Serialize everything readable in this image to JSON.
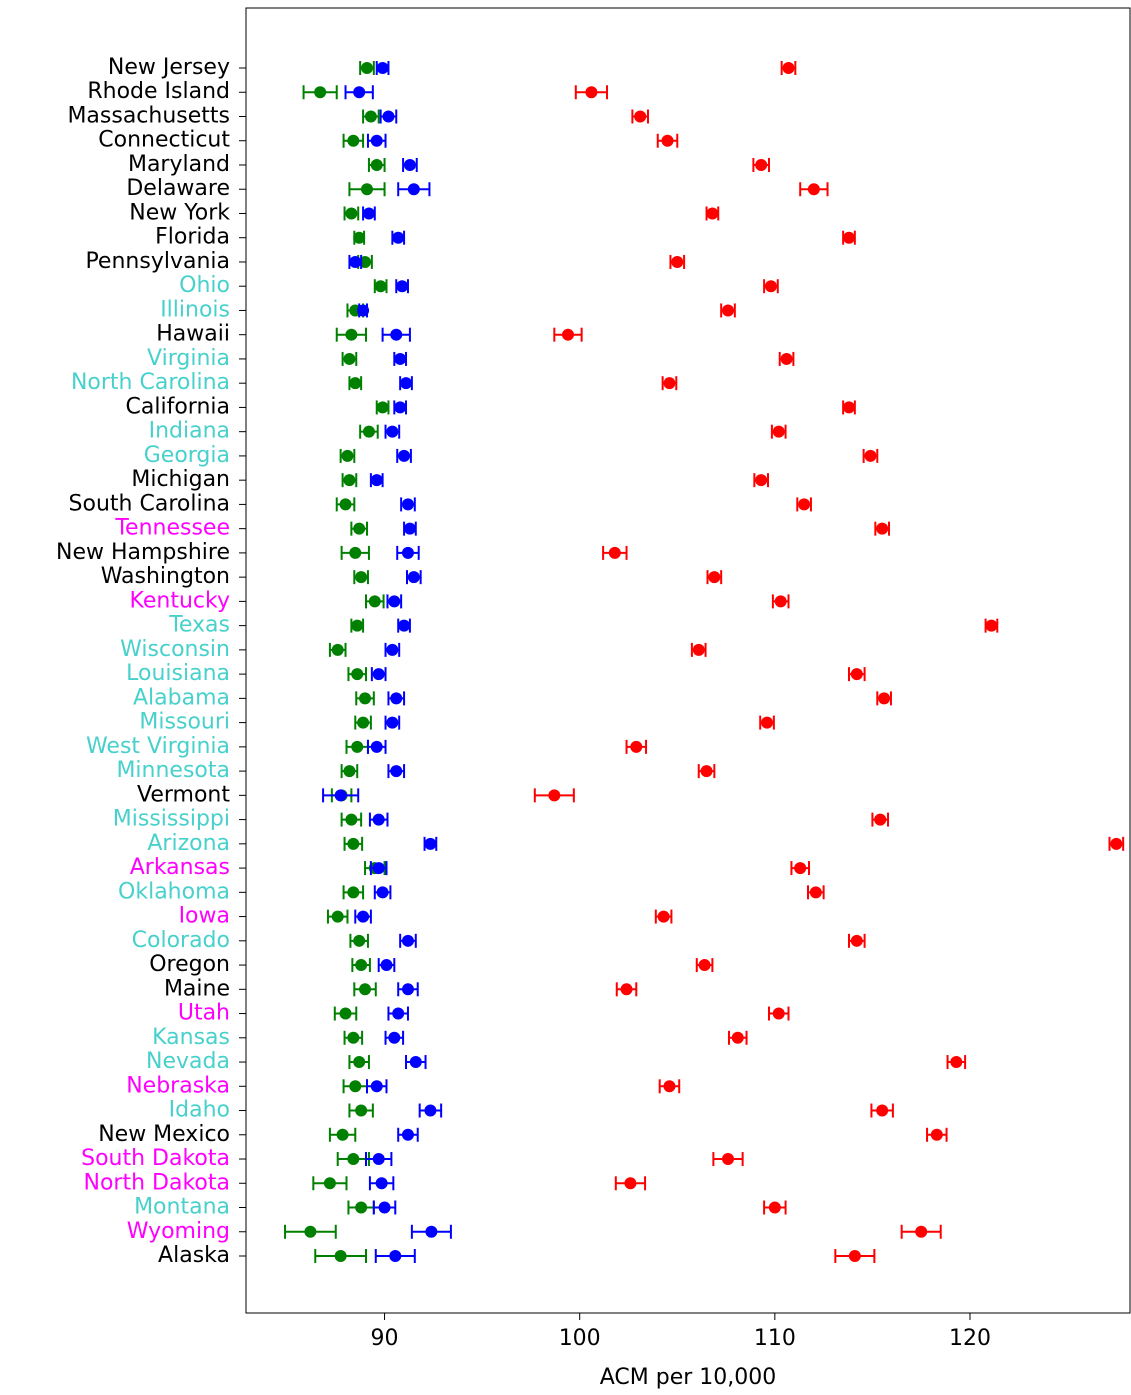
{
  "chart_data": {
    "type": "errorbar-dot",
    "x_label": "ACM per 10,000",
    "categories": [
      "New Jersey",
      "Rhode Island",
      "Massachusetts",
      "Connecticut",
      "Maryland",
      "Delaware",
      "New York",
      "Florida",
      "Pennsylvania",
      "Ohio",
      "Illinois",
      "Hawaii",
      "Virginia",
      "North Carolina",
      "California",
      "Indiana",
      "Georgia",
      "Michigan",
      "South Carolina",
      "Tennessee",
      "New Hampshire",
      "Washington",
      "Kentucky",
      "Texas",
      "Wisconsin",
      "Louisiana",
      "Alabama",
      "Missouri",
      "West Virginia",
      "Minnesota",
      "Vermont",
      "Mississippi",
      "Arizona",
      "Arkansas",
      "Oklahoma",
      "Iowa",
      "Colorado",
      "Oregon",
      "Maine",
      "Utah",
      "Kansas",
      "Nevada",
      "Nebraska",
      "Idaho",
      "New Mexico",
      "South Dakota",
      "North Dakota",
      "Montana",
      "Wyoming",
      "Alaska"
    ],
    "label_colors": [
      "#000000",
      "#000000",
      "#000000",
      "#000000",
      "#000000",
      "#000000",
      "#000000",
      "#000000",
      "#000000",
      "#48d1cc",
      "#48d1cc",
      "#000000",
      "#48d1cc",
      "#48d1cc",
      "#000000",
      "#48d1cc",
      "#48d1cc",
      "#000000",
      "#000000",
      "#ff00ff",
      "#000000",
      "#000000",
      "#ff00ff",
      "#48d1cc",
      "#48d1cc",
      "#48d1cc",
      "#48d1cc",
      "#48d1cc",
      "#48d1cc",
      "#48d1cc",
      "#000000",
      "#48d1cc",
      "#48d1cc",
      "#ff00ff",
      "#48d1cc",
      "#ff00ff",
      "#48d1cc",
      "#000000",
      "#000000",
      "#ff00ff",
      "#48d1cc",
      "#48d1cc",
      "#ff00ff",
      "#48d1cc",
      "#000000",
      "#ff00ff",
      "#ff00ff",
      "#48d1cc",
      "#ff00ff",
      "#000000"
    ],
    "series": [
      {
        "color": "#008000",
        "values": [
          89.1,
          86.7,
          89.3,
          88.4,
          89.6,
          89.1,
          88.3,
          88.7,
          89.0,
          89.8,
          88.5,
          88.3,
          88.2,
          88.5,
          89.9,
          89.2,
          88.1,
          88.2,
          88.0,
          88.7,
          88.5,
          88.8,
          89.5,
          88.6,
          87.6,
          88.6,
          89.0,
          88.9,
          88.6,
          88.2,
          87.8,
          88.3,
          88.4,
          89.5,
          88.4,
          87.6,
          88.7,
          88.8,
          89.0,
          88.0,
          88.4,
          88.7,
          88.5,
          88.8,
          87.85,
          88.4,
          87.2,
          88.8,
          86.2,
          87.75
        ],
        "errors": [
          0.35,
          0.85,
          0.4,
          0.5,
          0.4,
          0.9,
          0.35,
          0.25,
          0.35,
          0.3,
          0.4,
          0.75,
          0.35,
          0.3,
          0.3,
          0.45,
          0.35,
          0.35,
          0.45,
          0.4,
          0.7,
          0.35,
          0.45,
          0.3,
          0.4,
          0.45,
          0.45,
          0.4,
          0.55,
          0.4,
          0.5,
          0.5,
          0.45,
          0.5,
          0.5,
          0.5,
          0.45,
          0.45,
          0.55,
          0.55,
          0.45,
          0.5,
          0.6,
          0.6,
          0.65,
          0.8,
          0.85,
          0.65,
          1.3,
          1.3
        ]
      },
      {
        "color": "#0000ff",
        "values": [
          89.9,
          88.7,
          90.2,
          89.6,
          91.3,
          91.5,
          89.2,
          90.7,
          88.5,
          90.9,
          88.9,
          90.6,
          90.8,
          91.1,
          90.8,
          90.4,
          91.0,
          89.6,
          91.2,
          91.3,
          91.2,
          91.5,
          90.5,
          91.0,
          90.4,
          89.7,
          90.6,
          90.4,
          89.6,
          90.6,
          87.75,
          89.7,
          92.35,
          89.7,
          89.9,
          88.9,
          91.2,
          90.1,
          91.2,
          90.7,
          90.5,
          91.6,
          89.6,
          92.35,
          91.2,
          89.7,
          89.85,
          90.0,
          92.4,
          90.55
        ],
        "errors": [
          0.3,
          0.7,
          0.4,
          0.45,
          0.35,
          0.8,
          0.3,
          0.3,
          0.3,
          0.3,
          0.2,
          0.7,
          0.3,
          0.3,
          0.3,
          0.35,
          0.35,
          0.3,
          0.35,
          0.3,
          0.55,
          0.35,
          0.35,
          0.3,
          0.35,
          0.35,
          0.4,
          0.35,
          0.45,
          0.4,
          0.9,
          0.45,
          0.3,
          0.4,
          0.4,
          0.4,
          0.4,
          0.4,
          0.5,
          0.5,
          0.45,
          0.5,
          0.5,
          0.55,
          0.5,
          0.65,
          0.6,
          0.55,
          1.0,
          1.0
        ]
      },
      {
        "color": "#ff0000",
        "values": [
          110.7,
          100.6,
          103.1,
          104.5,
          109.3,
          112.0,
          106.8,
          113.8,
          105.0,
          109.8,
          107.6,
          99.4,
          110.6,
          104.6,
          113.8,
          110.2,
          114.9,
          109.3,
          111.5,
          115.5,
          101.8,
          106.9,
          110.3,
          121.1,
          106.1,
          114.2,
          115.6,
          109.6,
          102.9,
          106.5,
          98.7,
          115.4,
          127.5,
          111.3,
          112.1,
          104.3,
          114.2,
          106.4,
          102.4,
          110.2,
          108.1,
          119.3,
          104.6,
          115.5,
          118.3,
          107.6,
          102.6,
          110.0,
          117.5,
          114.1
        ],
        "errors": [
          0.35,
          0.8,
          0.4,
          0.5,
          0.4,
          0.7,
          0.3,
          0.3,
          0.35,
          0.35,
          0.35,
          0.7,
          0.35,
          0.35,
          0.3,
          0.35,
          0.35,
          0.35,
          0.35,
          0.35,
          0.6,
          0.35,
          0.4,
          0.3,
          0.35,
          0.4,
          0.35,
          0.35,
          0.5,
          0.4,
          1.0,
          0.4,
          0.35,
          0.45,
          0.4,
          0.4,
          0.4,
          0.4,
          0.5,
          0.5,
          0.45,
          0.45,
          0.5,
          0.55,
          0.5,
          0.75,
          0.75,
          0.55,
          1.0,
          1.0
        ]
      }
    ],
    "xlim": [
      82.9,
      128.2
    ],
    "xticks": [
      90,
      100,
      110,
      120
    ]
  }
}
